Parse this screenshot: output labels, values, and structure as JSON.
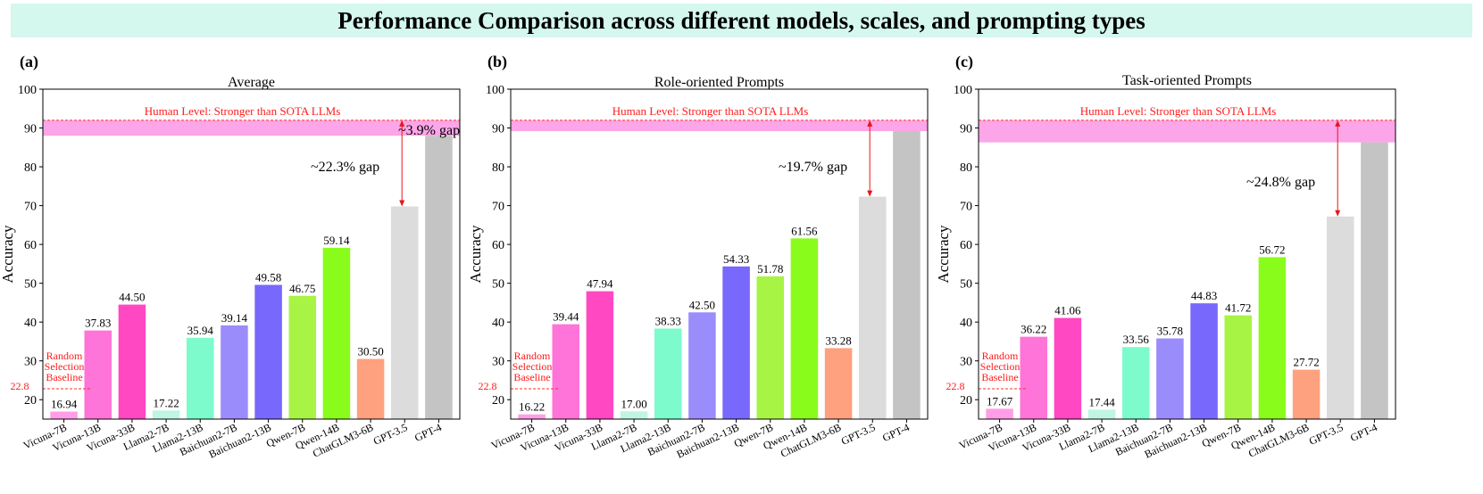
{
  "title": "Performance Comparison across different models, scales, and prompting types",
  "chart_data": [
    {
      "type": "bar",
      "panel_label": "(a)",
      "title": "Average",
      "ylabel": "Accuracy",
      "ylim": [
        15,
        100
      ],
      "yticks": [
        20,
        30,
        40,
        50,
        60,
        70,
        80,
        90,
        100
      ],
      "categories": [
        "Vicuna-7B",
        "Vicuna-13B",
        "Vicuna-33B",
        "Llama2-7B",
        "Llama2-13B",
        "Baichuan2-7B",
        "Baichuan2-13B",
        "Qwen-7B",
        "Qwen-14B",
        "ChatGLM3-6B",
        "GPT-3.5",
        "GPT-4"
      ],
      "values": [
        16.94,
        37.83,
        44.5,
        17.22,
        35.94,
        39.14,
        49.58,
        46.75,
        59.14,
        30.5,
        69.8,
        88.0
      ],
      "value_labels": [
        "16.94",
        "37.83",
        "44.50",
        "17.22",
        "35.94",
        "39.14",
        "49.58",
        "46.75",
        "59.14",
        "30.50",
        "",
        ""
      ],
      "colors": [
        "#ff9ee6",
        "#ff74d8",
        "#ff48c2",
        "#bff5e3",
        "#7dfbcd",
        "#9b8cfc",
        "#7868fb",
        "#a7f444",
        "#8afc1b",
        "#fea17e",
        "#dcdcdc",
        "#c4c4c4"
      ],
      "random_baseline": {
        "value": 22.8,
        "value_label": "22.8",
        "label": [
          "Random",
          "Selection",
          "Baseline"
        ]
      },
      "human_level": {
        "band": [
          88.0,
          92.0
        ],
        "label": "Human Level: Stronger than SOTA LLMs"
      },
      "gap_annotations": [
        {
          "text": "~22.3% gap",
          "from": 69.8,
          "to": 92.0
        },
        {
          "text": "~3.9% gap",
          "from": 88.0,
          "to": 92.0
        }
      ]
    },
    {
      "type": "bar",
      "panel_label": "(b)",
      "title": "Role-oriented Prompts",
      "ylabel": "Accuracy",
      "ylim": [
        15,
        100
      ],
      "yticks": [
        20,
        30,
        40,
        50,
        60,
        70,
        80,
        90,
        100
      ],
      "categories": [
        "Vicuna-7B",
        "Vicuna-13B",
        "Vicuna-33B",
        "Llama2-7B",
        "Llama2-13B",
        "Baichuan2-7B",
        "Baichuan2-13B",
        "Qwen-7B",
        "Qwen-14B",
        "ChatGLM3-6B",
        "GPT-3.5",
        "GPT-4"
      ],
      "values": [
        16.22,
        39.44,
        47.94,
        17.0,
        38.33,
        42.5,
        54.33,
        51.78,
        61.56,
        33.28,
        72.3,
        89.2
      ],
      "value_labels": [
        "16.22",
        "39.44",
        "47.94",
        "17.00",
        "38.33",
        "42.50",
        "54.33",
        "51.78",
        "61.56",
        "33.28",
        "",
        ""
      ],
      "colors": [
        "#ff9ee6",
        "#ff74d8",
        "#ff48c2",
        "#bff5e3",
        "#7dfbcd",
        "#9b8cfc",
        "#7868fb",
        "#a7f444",
        "#8afc1b",
        "#fea17e",
        "#dcdcdc",
        "#c4c4c4"
      ],
      "random_baseline": {
        "value": 22.8,
        "value_label": "22.8",
        "label": [
          "Random",
          "Selection",
          "Baseline"
        ]
      },
      "human_level": {
        "band": [
          89.2,
          92.0
        ],
        "label": "Human Level: Stronger than SOTA LLMs"
      },
      "gap_annotations": [
        {
          "text": "~19.7% gap",
          "from": 72.3,
          "to": 92.0
        }
      ]
    },
    {
      "type": "bar",
      "panel_label": "(c)",
      "title": "Task-oriented Prompts",
      "ylabel": "Accuracy",
      "ylim": [
        15,
        100
      ],
      "yticks": [
        20,
        30,
        40,
        50,
        60,
        70,
        80,
        90,
        100
      ],
      "categories": [
        "Vicuna-7B",
        "Vicuna-13B",
        "Vicuna-33B",
        "Llama2-7B",
        "Llama2-13B",
        "Baichuan2-7B",
        "Baichuan2-13B",
        "Qwen-7B",
        "Qwen-14B",
        "ChatGLM3-6B",
        "GPT-3.5",
        "GPT-4"
      ],
      "values": [
        17.67,
        36.22,
        41.06,
        17.44,
        33.56,
        35.78,
        44.83,
        41.72,
        56.72,
        27.72,
        67.2,
        86.3
      ],
      "value_labels": [
        "17.67",
        "36.22",
        "41.06",
        "17.44",
        "33.56",
        "35.78",
        "44.83",
        "41.72",
        "56.72",
        "27.72",
        "",
        ""
      ],
      "colors": [
        "#ff9ee6",
        "#ff74d8",
        "#ff48c2",
        "#bff5e3",
        "#7dfbcd",
        "#9b8cfc",
        "#7868fb",
        "#a7f444",
        "#8afc1b",
        "#fea17e",
        "#dcdcdc",
        "#c4c4c4"
      ],
      "random_baseline": {
        "value": 22.8,
        "value_label": "22.8",
        "label": [
          "Random",
          "Selection",
          "Baseline"
        ]
      },
      "human_level": {
        "band": [
          86.3,
          92.0
        ],
        "label": "Human Level: Stronger than SOTA LLMs"
      },
      "gap_annotations": [
        {
          "text": "~24.8% gap",
          "from": 67.2,
          "to": 92.0
        }
      ]
    }
  ]
}
